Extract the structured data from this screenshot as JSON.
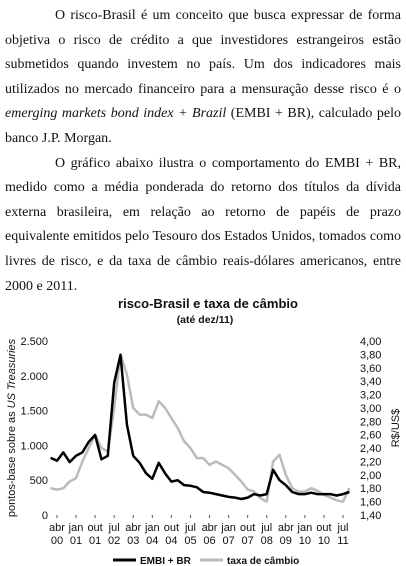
{
  "paragraphs": [
    {
      "parts": [
        "O risco-Brasil é um conceito que busca expressar de forma objetiva o risco de crédito a que investidores estrangeiros estão submetidos quando investem no país. Um dos indicadores mais utilizados no mercado financeiro para a mensuração desse risco é o ",
        "emerging markets bond index + Brazil",
        " (EMBI + BR), calculado pelo banco J.P. Morgan."
      ]
    },
    {
      "parts": [
        "O gráfico abaixo ilustra o comportamento do EMBI + BR, medido como a média ponderada do retorno dos títulos da dívida externa brasileira, em relação ao retorno de papéis de prazo equivalente emitidos pelo Tesouro dos Estados Unidos, tomados como livres de risco, e da taxa de câmbio reais-dólares americanos, entre 2000 e 2011."
      ]
    }
  ],
  "chart_data": {
    "type": "line",
    "title": "risco-Brasil e taxa de câmbio",
    "subtitle": "(até dez/11)",
    "y_label": [
      "pontos-base sobre as ",
      "US Treasuries"
    ],
    "y2_label": "R$/US$",
    "x": [
      "2000-01",
      "2000-04",
      "2000-07",
      "2000-10",
      "2001-01",
      "2001-04",
      "2001-07",
      "2001-10",
      "2002-01",
      "2002-04",
      "2002-07",
      "2002-10",
      "2003-01",
      "2003-04",
      "2003-07",
      "2003-10",
      "2004-01",
      "2004-04",
      "2004-07",
      "2004-10",
      "2005-01",
      "2005-04",
      "2005-07",
      "2005-10",
      "2006-01",
      "2006-04",
      "2006-07",
      "2006-10",
      "2007-01",
      "2007-04",
      "2007-07",
      "2007-10",
      "2008-01",
      "2008-04",
      "2008-07",
      "2008-10",
      "2009-01",
      "2009-04",
      "2009-07",
      "2009-10",
      "2010-01",
      "2010-04",
      "2010-07",
      "2010-10",
      "2011-01",
      "2011-04",
      "2011-07",
      "2011-10"
    ],
    "xticks": [
      {
        "value": "2000-04",
        "label": "abr 00"
      },
      {
        "value": "2001-01",
        "label": "jan 01"
      },
      {
        "value": "2001-10",
        "label": "out 01"
      },
      {
        "value": "2002-07",
        "label": "jul 02"
      },
      {
        "value": "2003-04",
        "label": "abr 03"
      },
      {
        "value": "2004-01",
        "label": "jan 04"
      },
      {
        "value": "2004-10",
        "label": "out 04"
      },
      {
        "value": "2005-07",
        "label": "jul 05"
      },
      {
        "value": "2006-04",
        "label": "abr 06"
      },
      {
        "value": "2007-01",
        "label": "jan 07"
      },
      {
        "value": "2007-10",
        "label": "out 07"
      },
      {
        "value": "2008-07",
        "label": "jul 08"
      },
      {
        "value": "2009-04",
        "label": "abr 09"
      },
      {
        "value": "2010-01",
        "label": "jan 10"
      },
      {
        "value": "2010-10",
        "label": "out 10"
      },
      {
        "value": "2011-07",
        "label": "jul 11"
      }
    ],
    "ylim": [
      0,
      2500
    ],
    "yticks": [
      0,
      500,
      {
        "value": 1000,
        "label": "1.000"
      },
      {
        "value": 1500,
        "label": "1.500"
      },
      {
        "value": 2000,
        "label": "2.000"
      },
      {
        "value": 2500,
        "label": "2.500"
      }
    ],
    "y2lim": [
      1.4,
      4.0
    ],
    "y2ticks": [
      {
        "value": 1.4,
        "label": "1,40"
      },
      {
        "value": 1.6,
        "label": "1,60"
      },
      {
        "value": 1.8,
        "label": "1,80"
      },
      {
        "value": 2.0,
        "label": "2,00"
      },
      {
        "value": 2.2,
        "label": "2,20"
      },
      {
        "value": 2.4,
        "label": "2,40"
      },
      {
        "value": 2.6,
        "label": "2,60"
      },
      {
        "value": 2.8,
        "label": "2,80"
      },
      {
        "value": 3.0,
        "label": "3,00"
      },
      {
        "value": 3.2,
        "label": "3,20"
      },
      {
        "value": 3.4,
        "label": "3,40"
      },
      {
        "value": 3.6,
        "label": "3,60"
      },
      {
        "value": 3.8,
        "label": "3,80"
      },
      {
        "value": 4.0,
        "label": "4,00"
      }
    ],
    "series": [
      {
        "name": "taxa de câmbio",
        "color": "#bbbbbb",
        "axis": "y2",
        "values": [
          1.8,
          1.78,
          1.8,
          1.9,
          1.95,
          2.2,
          2.4,
          2.6,
          2.4,
          2.35,
          3.0,
          3.8,
          3.5,
          3.0,
          2.9,
          2.9,
          2.85,
          3.1,
          3.0,
          2.85,
          2.7,
          2.5,
          2.4,
          2.25,
          2.25,
          2.15,
          2.2,
          2.15,
          2.1,
          2.0,
          1.9,
          1.78,
          1.75,
          1.65,
          1.6,
          2.2,
          2.3,
          2.0,
          1.8,
          1.75,
          1.75,
          1.8,
          1.76,
          1.7,
          1.66,
          1.62,
          1.6,
          1.8
        ]
      },
      {
        "name": "EMBI + BR",
        "color": "#000000",
        "values": [
          820,
          780,
          900,
          760,
          850,
          900,
          1050,
          1150,
          800,
          850,
          1900,
          2300,
          1300,
          850,
          750,
          600,
          520,
          750,
          600,
          480,
          500,
          430,
          420,
          400,
          330,
          320,
          300,
          280,
          260,
          250,
          230,
          250,
          300,
          280,
          300,
          650,
          500,
          430,
          330,
          300,
          300,
          320,
          300,
          300,
          300,
          280,
          300,
          330
        ]
      }
    ]
  }
}
